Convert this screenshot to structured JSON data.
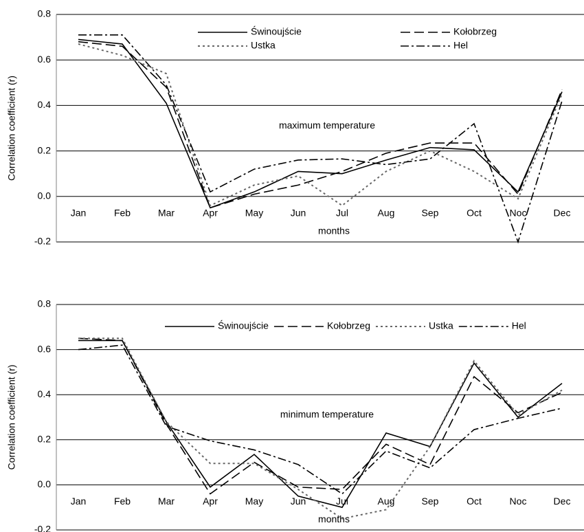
{
  "chart_data": [
    {
      "type": "line",
      "annotation": "maximum temperature",
      "x_label": "months",
      "y_label": "Correlation coefficient  (r)",
      "categories": [
        "Jan",
        "Feb",
        "Mar",
        "Apr",
        "May",
        "Jun",
        "Jul",
        "Aug",
        "Sep",
        "Oct",
        "Noc",
        "Dec"
      ],
      "ylim": [
        -0.2,
        0.8
      ],
      "yticks": [
        0.8,
        0.6,
        0.4,
        {
          "value": 0.2,
          "label": "0.2"
        },
        {
          "value": 0,
          "label": "0.0"
        },
        -0.2
      ],
      "grid": true,
      "legend_columns": 2,
      "series": [
        {
          "name": "Świnoujście",
          "color": "#000000",
          "dash": "solid",
          "values": [
            0.69,
            0.67,
            0.41,
            -0.05,
            0.02,
            0.11,
            0.1,
            0.16,
            0.215,
            0.205,
            0.02,
            0.46
          ]
        },
        {
          "name": "Kołobrzeg",
          "color": "#000000",
          "dash": "dashed",
          "values": [
            0.68,
            0.66,
            0.48,
            -0.05,
            0.01,
            0.05,
            0.11,
            0.19,
            0.235,
            0.235,
            0.01,
            0.47
          ]
        },
        {
          "name": "Ustka",
          "color": "#666666",
          "dash": "dotted",
          "values": [
            0.67,
            0.62,
            0.54,
            -0.04,
            0.05,
            0.09,
            -0.04,
            0.11,
            0.2,
            0.11,
            -0.01,
            0.45
          ]
        },
        {
          "name": "Hel",
          "color": "#000000",
          "dash": "dashdot",
          "values": [
            0.71,
            0.71,
            0.49,
            0.02,
            0.12,
            0.16,
            0.165,
            0.14,
            0.165,
            0.32,
            -0.2,
            0.42
          ]
        }
      ]
    },
    {
      "type": "line",
      "annotation": "minimum temperature",
      "x_label": "months",
      "y_label": "Correlation coefficient  (r)",
      "categories": [
        "Jan",
        "Feb",
        "Mar",
        "Apr",
        "May",
        "Jun",
        "Jul",
        "Aug",
        "Sep",
        "Oct",
        "Noc",
        "Dec"
      ],
      "ylim": [
        -0.2,
        0.8
      ],
      "yticks": [
        0.8,
        0.6,
        0.4,
        0.2,
        {
          "value": 0,
          "label": "0.0"
        },
        -0.2
      ],
      "grid": true,
      "legend_columns": 4,
      "series": [
        {
          "name": "Świnoujście",
          "color": "#000000",
          "dash": "solid",
          "values": [
            0.64,
            0.64,
            0.28,
            -0.01,
            0.135,
            -0.05,
            -0.1,
            0.23,
            0.17,
            0.54,
            0.3,
            0.45
          ]
        },
        {
          "name": "Kołobrzeg",
          "color": "#000000",
          "dash": "dashed",
          "values": [
            0.65,
            0.64,
            0.27,
            -0.04,
            0.1,
            -0.01,
            -0.02,
            0.18,
            0.09,
            0.48,
            0.32,
            0.41
          ]
        },
        {
          "name": "Ustka",
          "color": "#666666",
          "dash": "dotted",
          "values": [
            0.65,
            0.65,
            0.28,
            0.095,
            0.095,
            -0.02,
            -0.15,
            -0.11,
            0.17,
            0.55,
            0.31,
            0.42
          ]
        },
        {
          "name": "Hel",
          "color": "#000000",
          "dash": "dashdot",
          "values": [
            0.6,
            0.62,
            0.26,
            0.195,
            0.155,
            0.09,
            -0.04,
            0.15,
            0.075,
            0.245,
            0.295,
            0.34
          ]
        }
      ]
    }
  ]
}
